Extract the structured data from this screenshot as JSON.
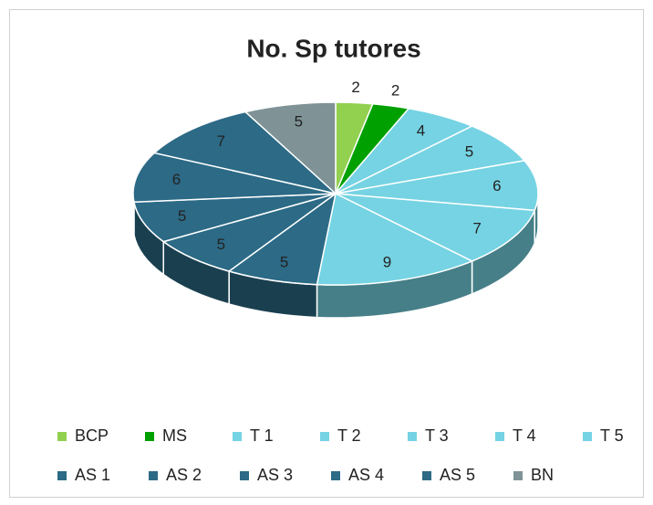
{
  "chart_data": {
    "type": "pie3d",
    "title": "No. Sp tutores",
    "categories": [
      "BCP",
      "MS",
      "T 1",
      "T 2",
      "T 3",
      "T 4",
      "T 5",
      "AS 1",
      "AS 2",
      "AS 3",
      "AS 4",
      "AS 5",
      "BN"
    ],
    "values": [
      2,
      2,
      4,
      5,
      6,
      7,
      9,
      5,
      5,
      5,
      6,
      7,
      5
    ],
    "colors": [
      "#92d050",
      "#00a000",
      "#75d3e3",
      "#75d3e3",
      "#75d3e3",
      "#75d3e3",
      "#75d3e3",
      "#2c6a86",
      "#2c6a86",
      "#2c6a86",
      "#2c6a86",
      "#2c6a86",
      "#7f9396"
    ],
    "legend": "bottom"
  }
}
